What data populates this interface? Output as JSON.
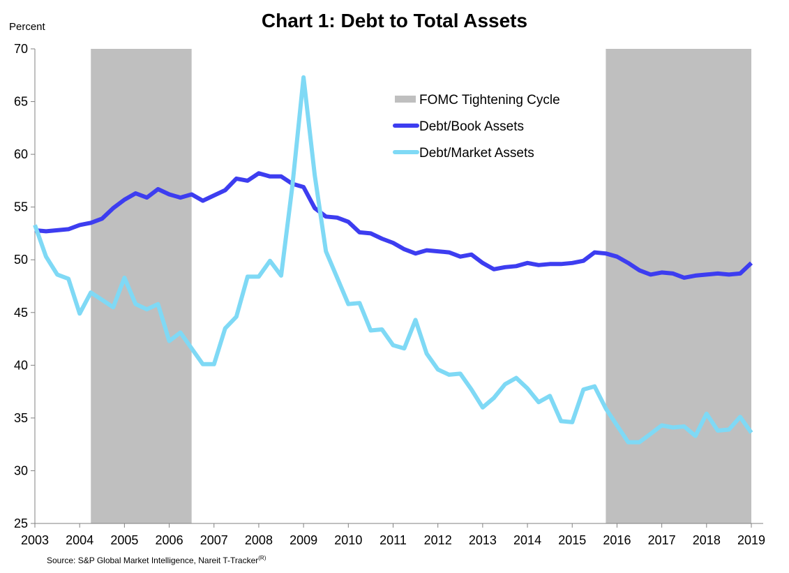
{
  "chart_data": {
    "type": "line",
    "title": "Chart 1: Debt to Total Assets",
    "ylabel": "Percent",
    "xlabel": "",
    "source": "Source: S&P Global Market Intelligence, Nareit T-Tracker",
    "source_sup": "(R)",
    "ylim": [
      25,
      70
    ],
    "xlim": [
      2003,
      2019.2
    ],
    "y_ticks": [
      25,
      30,
      35,
      40,
      45,
      50,
      55,
      60,
      65,
      70
    ],
    "x_ticks": [
      2003,
      2004,
      2005,
      2006,
      2007,
      2008,
      2009,
      2010,
      2011,
      2012,
      2013,
      2014,
      2015,
      2016,
      2017,
      2018,
      2019
    ],
    "grid": false,
    "legend_position": "top-center",
    "shaded_regions": {
      "name": "FOMC Tightening Cycle",
      "color": "#bfbfbf",
      "periods": [
        [
          2004.25,
          2006.5
        ],
        [
          2015.75,
          2019.0
        ]
      ]
    },
    "series": [
      {
        "name": "Debt/Book Assets",
        "color": "#3d3df0",
        "points": [
          [
            2003.0,
            52.8
          ],
          [
            2003.25,
            52.7
          ],
          [
            2003.5,
            52.8
          ],
          [
            2003.75,
            52.9
          ],
          [
            2004.0,
            53.3
          ],
          [
            2004.25,
            53.5
          ],
          [
            2004.5,
            53.9
          ],
          [
            2004.75,
            54.9
          ],
          [
            2005.0,
            55.7
          ],
          [
            2005.25,
            56.3
          ],
          [
            2005.5,
            55.9
          ],
          [
            2005.75,
            56.7
          ],
          [
            2006.0,
            56.2
          ],
          [
            2006.25,
            55.9
          ],
          [
            2006.5,
            56.2
          ],
          [
            2006.75,
            55.6
          ],
          [
            2007.0,
            56.1
          ],
          [
            2007.25,
            56.6
          ],
          [
            2007.5,
            57.7
          ],
          [
            2007.75,
            57.5
          ],
          [
            2008.0,
            58.2
          ],
          [
            2008.25,
            57.9
          ],
          [
            2008.5,
            57.9
          ],
          [
            2008.75,
            57.2
          ],
          [
            2009.0,
            56.9
          ],
          [
            2009.25,
            54.9
          ],
          [
            2009.5,
            54.1
          ],
          [
            2009.75,
            54.0
          ],
          [
            2010.0,
            53.6
          ],
          [
            2010.25,
            52.6
          ],
          [
            2010.5,
            52.5
          ],
          [
            2010.75,
            52.0
          ],
          [
            2011.0,
            51.6
          ],
          [
            2011.25,
            51.0
          ],
          [
            2011.5,
            50.6
          ],
          [
            2011.75,
            50.9
          ],
          [
            2012.0,
            50.8
          ],
          [
            2012.25,
            50.7
          ],
          [
            2012.5,
            50.3
          ],
          [
            2012.75,
            50.5
          ],
          [
            2013.0,
            49.7
          ],
          [
            2013.25,
            49.1
          ],
          [
            2013.5,
            49.3
          ],
          [
            2013.75,
            49.4
          ],
          [
            2014.0,
            49.7
          ],
          [
            2014.25,
            49.5
          ],
          [
            2014.5,
            49.6
          ],
          [
            2014.75,
            49.6
          ],
          [
            2015.0,
            49.7
          ],
          [
            2015.25,
            49.9
          ],
          [
            2015.5,
            50.7
          ],
          [
            2015.75,
            50.6
          ],
          [
            2016.0,
            50.3
          ],
          [
            2016.25,
            49.7
          ],
          [
            2016.5,
            49.0
          ],
          [
            2016.75,
            48.6
          ],
          [
            2017.0,
            48.8
          ],
          [
            2017.25,
            48.7
          ],
          [
            2017.5,
            48.3
          ],
          [
            2017.75,
            48.5
          ],
          [
            2018.0,
            48.6
          ],
          [
            2018.25,
            48.7
          ],
          [
            2018.5,
            48.6
          ],
          [
            2018.75,
            48.7
          ],
          [
            2019.0,
            49.7
          ]
        ]
      },
      {
        "name": "Debt/Market Assets",
        "color": "#7fd9f5",
        "points": [
          [
            2003.0,
            53.3
          ],
          [
            2003.25,
            50.3
          ],
          [
            2003.5,
            48.6
          ],
          [
            2003.75,
            48.2
          ],
          [
            2004.0,
            44.9
          ],
          [
            2004.25,
            46.9
          ],
          [
            2004.5,
            46.2
          ],
          [
            2004.75,
            45.5
          ],
          [
            2005.0,
            48.3
          ],
          [
            2005.25,
            45.8
          ],
          [
            2005.5,
            45.3
          ],
          [
            2005.75,
            45.8
          ],
          [
            2006.0,
            42.3
          ],
          [
            2006.25,
            43.1
          ],
          [
            2006.5,
            41.6
          ],
          [
            2006.75,
            40.1
          ],
          [
            2007.0,
            40.1
          ],
          [
            2007.25,
            43.5
          ],
          [
            2007.5,
            44.6
          ],
          [
            2007.75,
            48.4
          ],
          [
            2008.0,
            48.4
          ],
          [
            2008.25,
            49.9
          ],
          [
            2008.5,
            48.5
          ],
          [
            2008.75,
            57.0
          ],
          [
            2009.0,
            67.3
          ],
          [
            2009.25,
            58.0
          ],
          [
            2009.5,
            50.8
          ],
          [
            2009.75,
            48.3
          ],
          [
            2010.0,
            45.8
          ],
          [
            2010.25,
            45.9
          ],
          [
            2010.5,
            43.3
          ],
          [
            2010.75,
            43.4
          ],
          [
            2011.0,
            41.9
          ],
          [
            2011.25,
            41.6
          ],
          [
            2011.5,
            44.3
          ],
          [
            2011.75,
            41.1
          ],
          [
            2012.0,
            39.6
          ],
          [
            2012.25,
            39.1
          ],
          [
            2012.5,
            39.2
          ],
          [
            2012.75,
            37.7
          ],
          [
            2013.0,
            36.0
          ],
          [
            2013.25,
            36.9
          ],
          [
            2013.5,
            38.2
          ],
          [
            2013.75,
            38.8
          ],
          [
            2014.0,
            37.8
          ],
          [
            2014.25,
            36.5
          ],
          [
            2014.5,
            37.1
          ],
          [
            2014.75,
            34.7
          ],
          [
            2015.0,
            34.6
          ],
          [
            2015.25,
            37.7
          ],
          [
            2015.5,
            38.0
          ],
          [
            2015.75,
            35.9
          ],
          [
            2016.0,
            34.3
          ],
          [
            2016.25,
            32.7
          ],
          [
            2016.5,
            32.7
          ],
          [
            2016.75,
            33.5
          ],
          [
            2017.0,
            34.3
          ],
          [
            2017.25,
            34.1
          ],
          [
            2017.5,
            34.2
          ],
          [
            2017.75,
            33.3
          ],
          [
            2018.0,
            35.4
          ],
          [
            2018.25,
            33.8
          ],
          [
            2018.5,
            33.9
          ],
          [
            2018.75,
            35.1
          ],
          [
            2019.0,
            33.6
          ]
        ]
      }
    ]
  }
}
